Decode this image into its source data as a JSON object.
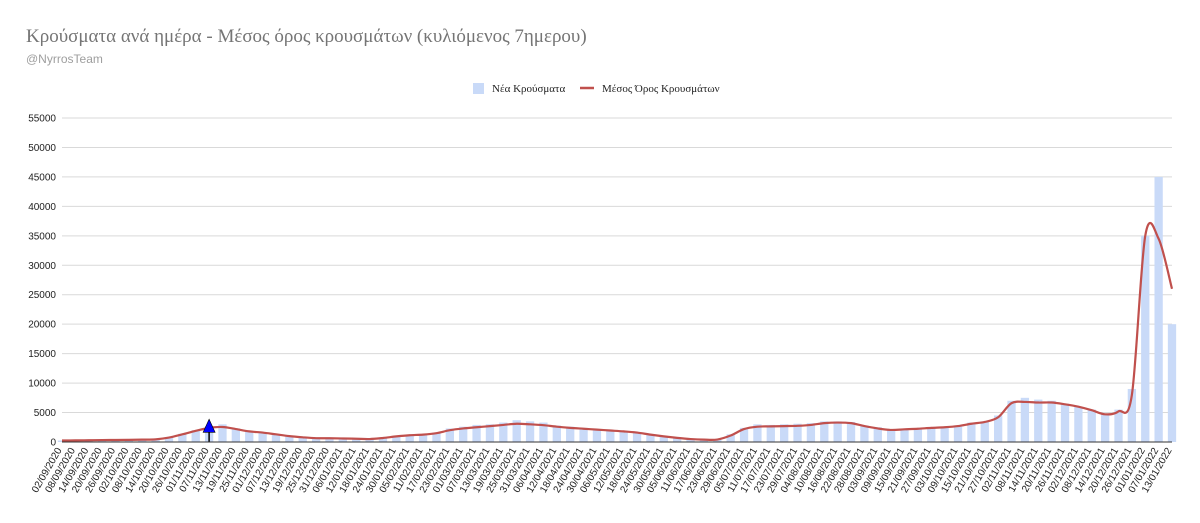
{
  "title": "Κρούσματα ανά ημέρα - Μέσος όρος κρουσμάτων (κυλιόμενος 7ημερου)",
  "subtitle": "@NyrrosTeam",
  "colors": {
    "bar": "#c9daf8",
    "line": "#c0504d",
    "marker": "#0000ff",
    "grid": "#d9d9d9"
  },
  "chart_data": {
    "type": "bar",
    "legend_position": "top",
    "grid": true,
    "ylim": [
      0,
      55000
    ],
    "yticks": [
      0,
      5000,
      10000,
      15000,
      20000,
      25000,
      30000,
      35000,
      40000,
      45000,
      50000,
      55000
    ],
    "x_tick_labels": [
      "02/09/2020",
      "08/09/2020",
      "14/09/2020",
      "20/09/2020",
      "26/09/2020",
      "02/10/2020",
      "08/10/2020",
      "14/10/2020",
      "20/10/2020",
      "26/10/2020",
      "01/11/2020",
      "07/11/2020",
      "13/11/2020",
      "19/11/2020",
      "25/11/2020",
      "01/12/2020",
      "07/12/2020",
      "13/12/2020",
      "19/12/2020",
      "25/12/2020",
      "31/12/2020",
      "06/01/2021",
      "12/01/2021",
      "18/01/2021",
      "24/01/2021",
      "30/01/2021",
      "05/02/2021",
      "11/02/2021",
      "17/02/2021",
      "23/02/2021",
      "01/03/2021",
      "07/03/2021",
      "13/03/2021",
      "19/03/2021",
      "25/03/2021",
      "31/03/2021",
      "06/04/2021",
      "12/04/2021",
      "18/04/2021",
      "24/04/2021",
      "30/04/2021",
      "06/05/2021",
      "12/05/2021",
      "18/05/2021",
      "24/05/2021",
      "30/05/2021",
      "05/06/2021",
      "11/06/2021",
      "17/06/2021",
      "23/06/2021",
      "29/06/2021",
      "05/07/2021",
      "11/07/2021",
      "17/07/2021",
      "23/07/2021",
      "29/07/2021",
      "04/08/2021",
      "10/08/2021",
      "16/08/2021",
      "22/08/2021",
      "28/08/2021",
      "03/09/2021",
      "09/09/2021",
      "15/09/2021",
      "21/09/2021",
      "27/09/2021",
      "03/10/2021",
      "09/10/2021",
      "15/10/2021",
      "21/10/2021",
      "27/10/2021",
      "02/11/2021",
      "08/11/2021",
      "14/11/2021",
      "20/11/2021",
      "26/11/2021",
      "02/12/2021",
      "08/12/2021",
      "14/12/2021",
      "20/12/2021",
      "26/12/2021",
      "01/01/2022",
      "07/01/2022",
      "13/01/2022"
    ],
    "series": [
      {
        "name": "Νέα Κρούσματα",
        "kind": "bar",
        "values": [
          250,
          270,
          300,
          330,
          340,
          360,
          400,
          450,
          800,
          1400,
          2000,
          2700,
          3000,
          2300,
          1700,
          1500,
          1200,
          900,
          700,
          600,
          650,
          600,
          550,
          480,
          700,
          950,
          1200,
          1300,
          1600,
          2300,
          2600,
          2900,
          3000,
          3300,
          3700,
          3500,
          3300,
          2800,
          2600,
          2400,
          2200,
          2000,
          1900,
          1700,
          1300,
          1000,
          700,
          500,
          400,
          450,
          1300,
          2400,
          3000,
          2900,
          3000,
          3100,
          3200,
          3500,
          3500,
          3400,
          2800,
          2500,
          2100,
          2200,
          2300,
          2500,
          2500,
          2800,
          3300,
          3500,
          4500,
          7000,
          7500,
          7200,
          7000,
          6500,
          6000,
          5500,
          4700,
          5500,
          9000,
          35000,
          45000,
          20000
        ]
      },
      {
        "name": "Μέσος Όρος Κρουσμάτων",
        "kind": "line",
        "values": [
          250,
          270,
          300,
          330,
          340,
          360,
          400,
          450,
          750,
          1300,
          1900,
          2400,
          2550,
          2200,
          1800,
          1600,
          1300,
          1000,
          800,
          650,
          640,
          600,
          550,
          500,
          680,
          950,
          1150,
          1250,
          1500,
          2000,
          2300,
          2500,
          2700,
          2900,
          3100,
          3000,
          2850,
          2600,
          2400,
          2250,
          2100,
          1950,
          1800,
          1600,
          1250,
          950,
          700,
          500,
          400,
          420,
          1100,
          2200,
          2600,
          2650,
          2700,
          2750,
          2900,
          3200,
          3300,
          3200,
          2700,
          2300,
          2050,
          2150,
          2250,
          2400,
          2500,
          2700,
          3100,
          3400,
          4200,
          6600,
          6800,
          6700,
          6700,
          6400,
          6000,
          5400,
          4700,
          5200,
          8000,
          35000,
          34500,
          26000
        ]
      },
      {
        "name": "marker",
        "kind": "marker",
        "category": "07/11/2020",
        "y": 2500
      }
    ]
  }
}
